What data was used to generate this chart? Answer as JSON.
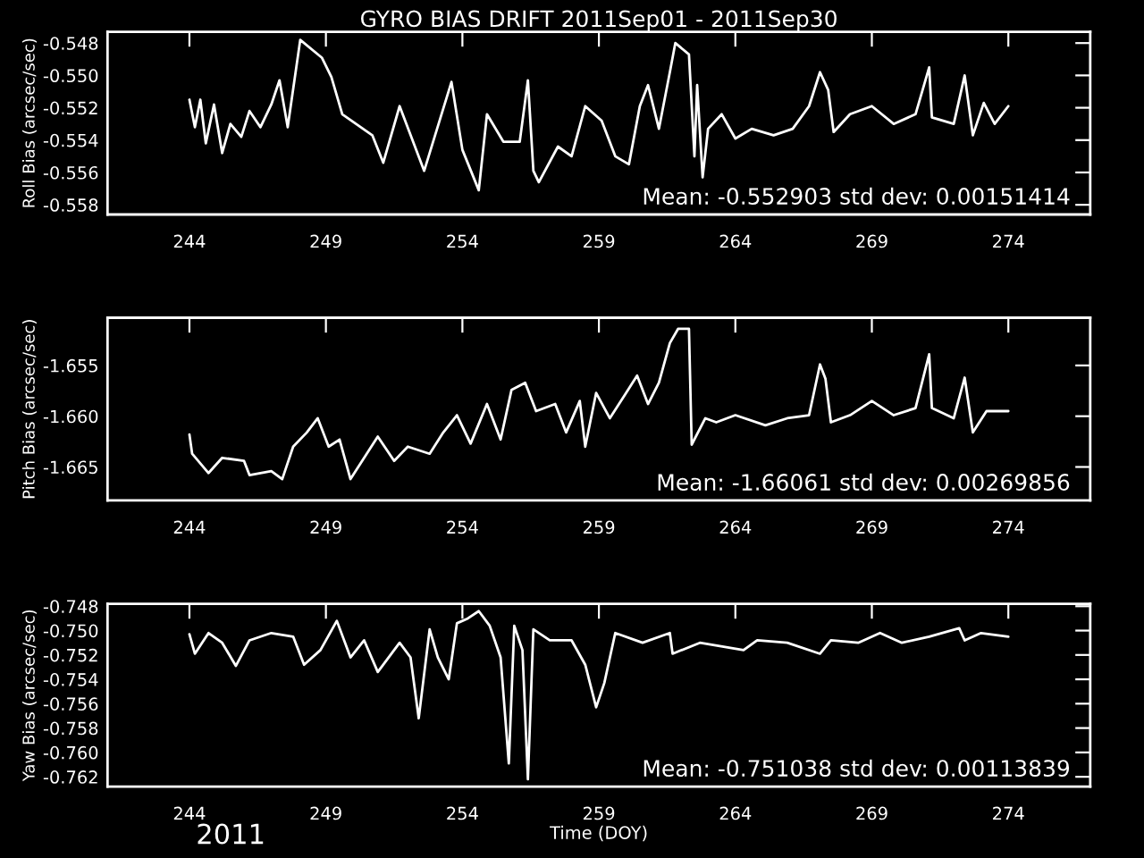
{
  "chart_data": [
    {
      "type": "line",
      "title": "GYRO BIAS DRIFT 2011Sep01 - 2011Sep30",
      "ylabel": "Roll Bias (arcsec/sec)",
      "color": "#ffffff",
      "x": [
        244.0,
        244.2,
        244.4,
        244.6,
        244.9,
        245.2,
        245.5,
        245.9,
        246.2,
        246.6,
        247.0,
        247.3,
        247.6,
        248.06,
        248.85,
        249.2,
        249.6,
        250.7,
        251.1,
        251.7,
        252.6,
        253.6,
        254.0,
        254.6,
        254.9,
        255.5,
        256.1,
        256.4,
        256.6,
        256.8,
        257.5,
        258.0,
        258.5,
        259.1,
        259.6,
        260.1,
        260.5,
        260.8,
        261.2,
        261.6,
        261.8,
        262.3,
        262.5,
        262.6,
        262.8,
        263.0,
        263.5,
        264.0,
        264.6,
        265.4,
        266.1,
        266.7,
        267.1,
        267.4,
        267.6,
        268.2,
        269.0,
        269.8,
        270.6,
        271.1,
        271.2,
        272.0,
        272.4,
        272.7,
        273.1,
        273.5,
        274.0
      ],
      "values": [
        -0.5515,
        -0.5532,
        -0.5515,
        -0.5542,
        -0.5518,
        -0.5548,
        -0.553,
        -0.5538,
        -0.5522,
        -0.5532,
        -0.5518,
        -0.5503,
        -0.5532,
        -0.5478,
        -0.5489,
        -0.5501,
        -0.5524,
        -0.5537,
        -0.5554,
        -0.5519,
        -0.5559,
        -0.5504,
        -0.5546,
        -0.5571,
        -0.5524,
        -0.5541,
        -0.5541,
        -0.5503,
        -0.5559,
        -0.5566,
        -0.5544,
        -0.555,
        -0.5519,
        -0.5528,
        -0.555,
        -0.5555,
        -0.5519,
        -0.5506,
        -0.5533,
        -0.5498,
        -0.548,
        -0.5487,
        -0.555,
        -0.5506,
        -0.5563,
        -0.5533,
        -0.5524,
        -0.5539,
        -0.5533,
        -0.5537,
        -0.5533,
        -0.5519,
        -0.5498,
        -0.5509,
        -0.5535,
        -0.5524,
        -0.5519,
        -0.553,
        -0.5524,
        -0.5495,
        -0.5526,
        -0.553,
        -0.55,
        -0.5537,
        -0.5517,
        -0.553,
        -0.5519
      ],
      "xlim": [
        241,
        277
      ],
      "xticks": [
        244,
        249,
        254,
        259,
        264,
        269,
        274
      ],
      "ylim": [
        -0.5586,
        -0.5473
      ],
      "yticks": [
        -0.548,
        {
          "value": -0.55,
          "label": "-0.550"
        },
        -0.552,
        -0.554,
        -0.556,
        -0.558
      ],
      "annotations": [
        "Mean: -0.552903 std dev: 0.00151414"
      ]
    },
    {
      "type": "line",
      "ylabel": "Pitch Bias (arcsec/sec)",
      "color": "#ffffff",
      "x": [
        244.0,
        244.1,
        244.7,
        245.2,
        246.0,
        246.2,
        247.0,
        247.4,
        247.8,
        248.3,
        248.7,
        249.1,
        249.5,
        249.9,
        250.4,
        250.9,
        251.5,
        252.0,
        252.8,
        253.3,
        253.8,
        254.3,
        254.9,
        255.4,
        255.8,
        256.3,
        256.7,
        257.4,
        257.8,
        258.3,
        258.5,
        258.9,
        259.4,
        260.0,
        260.4,
        260.8,
        261.2,
        261.6,
        261.9,
        262.3,
        262.4,
        262.9,
        263.3,
        264.0,
        265.1,
        265.9,
        266.7,
        267.1,
        267.3,
        267.5,
        268.2,
        269.0,
        269.8,
        270.6,
        271.1,
        271.2,
        272.0,
        272.4,
        272.7,
        273.2,
        274.0
      ],
      "values": [
        -1.6618,
        -1.6637,
        -1.6656,
        -1.6641,
        -1.6644,
        -1.6658,
        -1.6654,
        -1.6662,
        -1.663,
        -1.6616,
        -1.6602,
        -1.663,
        -1.6623,
        -1.6662,
        -1.6641,
        -1.662,
        -1.6644,
        -1.663,
        -1.6637,
        -1.6616,
        -1.6599,
        -1.6627,
        -1.6588,
        -1.6623,
        -1.6574,
        -1.6567,
        -1.6595,
        -1.6588,
        -1.6616,
        -1.6585,
        -1.663,
        -1.6577,
        -1.6602,
        -1.6577,
        -1.656,
        -1.6588,
        -1.6567,
        -1.6528,
        -1.6514,
        -1.6514,
        -1.6628,
        -1.6602,
        -1.6606,
        -1.6599,
        -1.6609,
        -1.6602,
        -1.6599,
        -1.6549,
        -1.6563,
        -1.6606,
        -1.6599,
        -1.6585,
        -1.6599,
        -1.6592,
        -1.6539,
        -1.6592,
        -1.6602,
        -1.6562,
        -1.6616,
        -1.6595,
        -1.6595
      ],
      "xlim": [
        241,
        277
      ],
      "xticks": [
        244,
        249,
        254,
        259,
        264,
        269,
        274
      ],
      "ylim": [
        -1.6683,
        -1.6503
      ],
      "yticks": [
        -1.655,
        {
          "value": -1.66,
          "label": "-1.660"
        },
        -1.665
      ],
      "annotations": [
        "Mean: -1.66061 std dev: 0.00269856"
      ]
    },
    {
      "type": "line",
      "xlabel": "Time (DOY)",
      "ylabel": "Yaw Bias (arcsec/sec)",
      "color": "#ffffff",
      "x": [
        244.0,
        244.2,
        244.7,
        245.2,
        245.7,
        246.2,
        247.0,
        247.8,
        248.2,
        248.8,
        249.4,
        249.9,
        250.4,
        250.9,
        251.7,
        252.1,
        252.4,
        252.8,
        253.1,
        253.5,
        253.8,
        254.2,
        254.6,
        255.0,
        255.4,
        255.7,
        255.9,
        256.2,
        256.4,
        256.6,
        257.2,
        258.0,
        258.5,
        258.9,
        259.2,
        259.6,
        260.6,
        261.6,
        261.7,
        262.7,
        264.3,
        264.8,
        265.9,
        267.1,
        267.5,
        268.5,
        269.3,
        270.1,
        271.1,
        272.2,
        272.4,
        273.0,
        274.0
      ],
      "values": [
        -0.7503,
        -0.7519,
        -0.7502,
        -0.751,
        -0.7529,
        -0.7508,
        -0.7502,
        -0.7505,
        -0.7528,
        -0.7516,
        -0.7492,
        -0.7522,
        -0.7508,
        -0.7534,
        -0.751,
        -0.7522,
        -0.7572,
        -0.7499,
        -0.7522,
        -0.754,
        -0.7494,
        -0.749,
        -0.7484,
        -0.7496,
        -0.7522,
        -0.7609,
        -0.7496,
        -0.7516,
        -0.7622,
        -0.7499,
        -0.7508,
        -0.7508,
        -0.7528,
        -0.7563,
        -0.7543,
        -0.7502,
        -0.751,
        -0.7502,
        -0.7519,
        -0.751,
        -0.7516,
        -0.7508,
        -0.751,
        -0.7519,
        -0.7508,
        -0.751,
        -0.7502,
        -0.751,
        -0.7505,
        -0.7498,
        -0.7508,
        -0.7502,
        -0.7505
      ],
      "xlim": [
        241,
        277
      ],
      "xticks": [
        244,
        249,
        254,
        259,
        264,
        269,
        274
      ],
      "ylim": [
        -0.7628,
        -0.7478
      ],
      "yticks": [
        -0.748,
        {
          "value": -0.75,
          "label": "-0.750"
        },
        -0.752,
        -0.754,
        -0.756,
        -0.758,
        {
          "value": -0.76,
          "label": "-0.760"
        },
        -0.762
      ],
      "annotations": [
        "Mean: -0.751038 std dev: 0.00113839",
        "2011"
      ]
    }
  ]
}
